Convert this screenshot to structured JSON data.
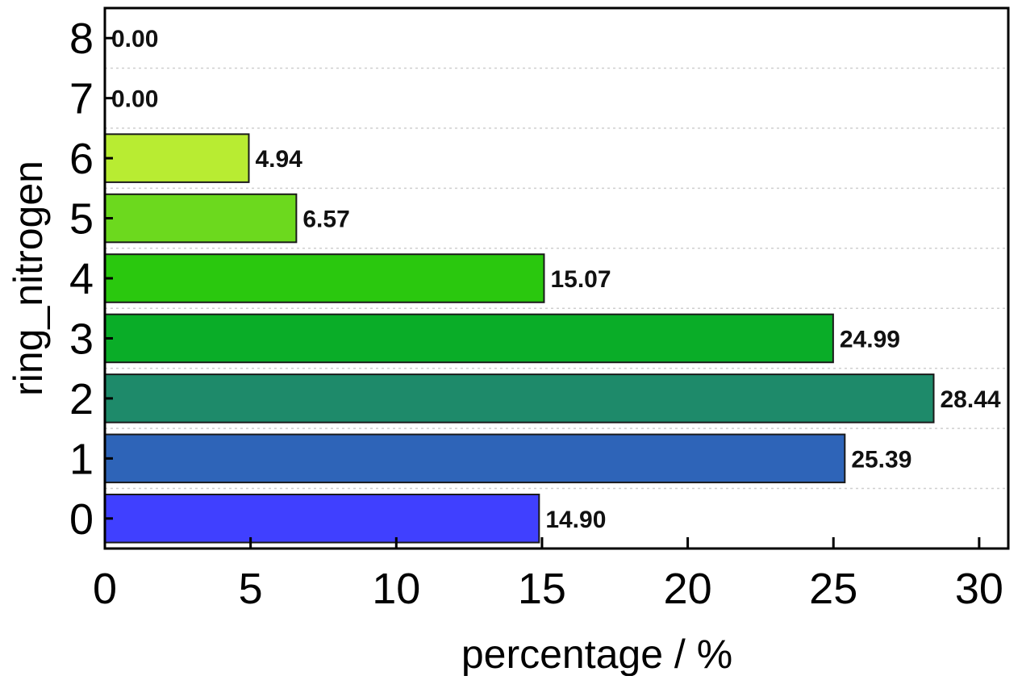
{
  "chart_data": {
    "type": "bar",
    "orientation": "horizontal",
    "title": "",
    "xlabel": "percentage / %",
    "ylabel": "ring_nitrogen",
    "xlim": [
      0,
      31
    ],
    "xticks": [
      0,
      5,
      10,
      15,
      20,
      25,
      30
    ],
    "xtick_labels": [
      "0",
      "5",
      "10",
      "15",
      "20",
      "25",
      "30"
    ],
    "categories": [
      "0",
      "1",
      "2",
      "3",
      "4",
      "5",
      "6",
      "7",
      "8"
    ],
    "values": [
      14.9,
      25.39,
      28.44,
      24.99,
      15.07,
      6.57,
      4.94,
      0.0,
      0.0
    ],
    "data_labels": [
      "14.90",
      "25.39",
      "28.44",
      "24.99",
      "15.07",
      "6.57",
      "4.94",
      "0.00",
      "0.00"
    ],
    "colors": [
      "#4040ff",
      "#2e64b8",
      "#1e8a6a",
      "#0aad28",
      "#2ac80e",
      "#6cd91e",
      "#b8ec32",
      "#d4f040",
      "#d4f040"
    ],
    "grid": "dotted-horizontal",
    "legend": "none"
  }
}
